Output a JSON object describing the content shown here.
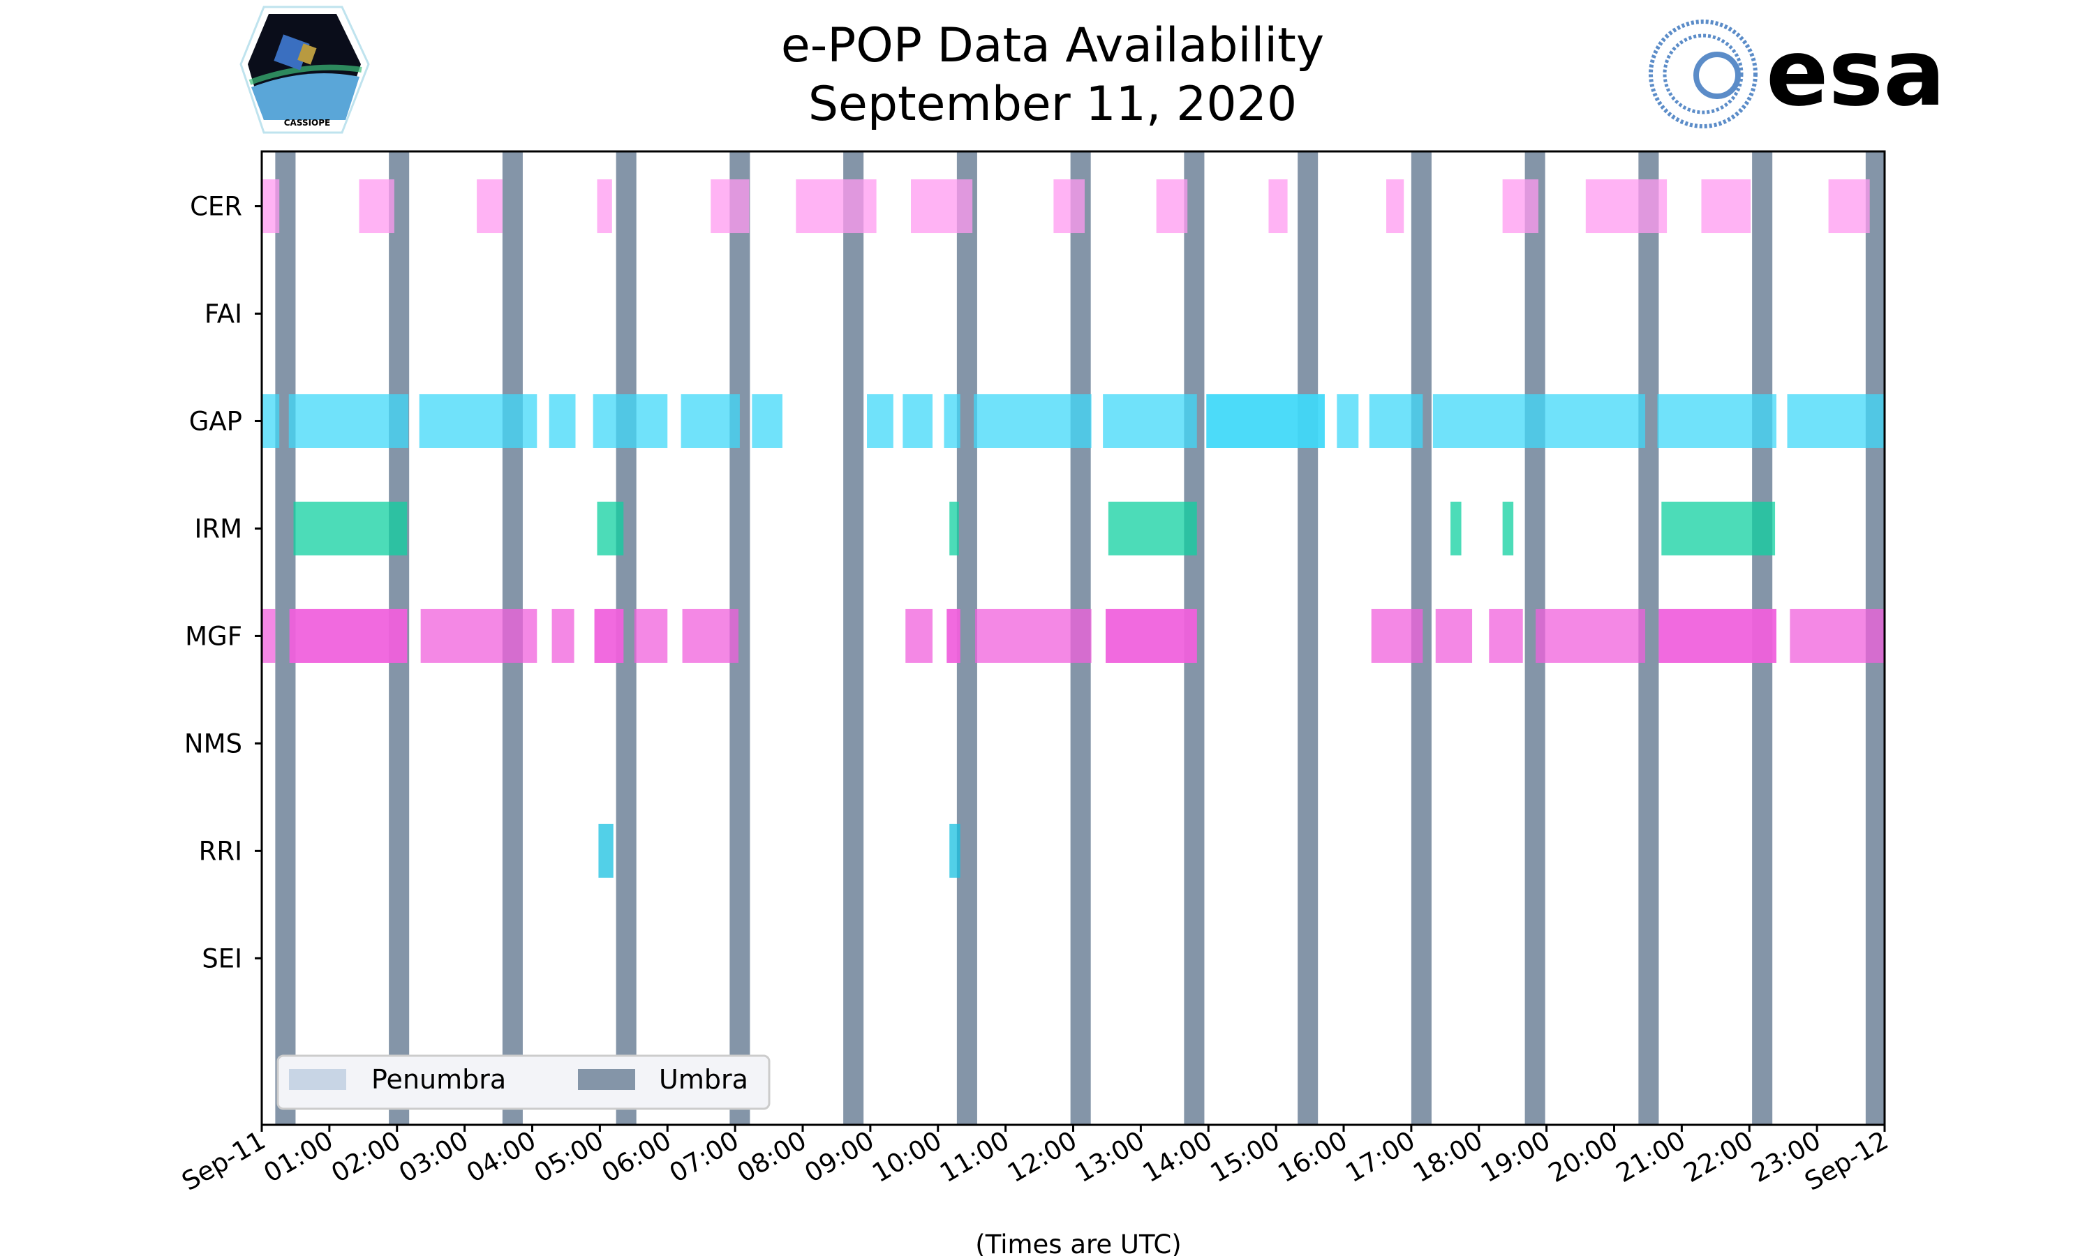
{
  "chart_data": {
    "type": "timeline",
    "title_line1": "e-POP Data Availability",
    "title_line2": "September 11, 2020",
    "xlabel": "(Times are UTC)",
    "xlim_hours": [
      0,
      24
    ],
    "x_ticks": [
      "Sep-11",
      "01:00",
      "02:00",
      "03:00",
      "04:00",
      "05:00",
      "06:00",
      "07:00",
      "08:00",
      "09:00",
      "10:00",
      "11:00",
      "12:00",
      "13:00",
      "14:00",
      "15:00",
      "16:00",
      "17:00",
      "18:00",
      "19:00",
      "20:00",
      "21:00",
      "22:00",
      "23:00",
      "Sep-12"
    ],
    "categories": [
      "CER",
      "FAI",
      "GAP",
      "IRM",
      "MGF",
      "NMS",
      "RRI",
      "SEI"
    ],
    "series": [
      {
        "name": "CER",
        "color": "#ff99f0",
        "intervals": [
          [
            0,
            0.26
          ],
          [
            1.44,
            1.96
          ],
          [
            3.18,
            3.56
          ],
          [
            4.96,
            5.18
          ],
          [
            6.64,
            7.21
          ],
          [
            7.9,
            9.09
          ],
          [
            9.6,
            10.51
          ],
          [
            11.71,
            12.17
          ],
          [
            13.23,
            13.69
          ],
          [
            14.89,
            15.17
          ],
          [
            16.63,
            16.89
          ],
          [
            18.35,
            18.88
          ],
          [
            19.58,
            20.78
          ],
          [
            21.29,
            22.02
          ],
          [
            23.17,
            23.78
          ]
        ]
      },
      {
        "name": "FAI",
        "color": "#888888",
        "intervals": []
      },
      {
        "name": "GAP",
        "color": "#40d8f8",
        "intervals": [
          [
            0,
            0.26
          ],
          [
            0.4,
            2.17
          ],
          [
            2.33,
            4.07
          ],
          [
            4.25,
            4.64
          ],
          [
            4.9,
            6.0
          ],
          [
            6.2,
            7.07
          ],
          [
            7.25,
            7.7
          ],
          [
            8.95,
            9.34
          ],
          [
            9.48,
            9.92
          ],
          [
            10.09,
            10.33
          ],
          [
            10.53,
            12.27
          ],
          [
            12.44,
            13.83
          ],
          [
            13.97,
            15.72
          ],
          [
            13.97,
            15.72
          ],
          [
            15.9,
            16.22
          ],
          [
            16.38,
            17.17
          ],
          [
            17.32,
            20.46
          ],
          [
            20.64,
            22.4
          ],
          [
            22.56,
            24.0
          ]
        ]
      },
      {
        "name": "IRM",
        "color": "#10d0a0",
        "intervals": [
          [
            0.47,
            2.15
          ],
          [
            4.96,
            5.35
          ],
          [
            10.17,
            10.31
          ],
          [
            12.52,
            13.83
          ],
          [
            17.58,
            17.74
          ],
          [
            18.35,
            18.51
          ],
          [
            20.7,
            22.38
          ]
        ]
      },
      {
        "name": "MGF",
        "color": "#f060dc",
        "intervals": [
          [
            0,
            0.2
          ],
          [
            0.41,
            2.15
          ],
          [
            0.41,
            2.15
          ],
          [
            2.35,
            4.07
          ],
          [
            4.29,
            4.62
          ],
          [
            4.92,
            5.35
          ],
          [
            4.92,
            5.35
          ],
          [
            5.51,
            6.0
          ],
          [
            6.22,
            7.05
          ],
          [
            9.52,
            9.92
          ],
          [
            10.13,
            10.33
          ],
          [
            10.13,
            10.33
          ],
          [
            10.55,
            12.27
          ],
          [
            12.48,
            13.83
          ],
          [
            12.48,
            13.83
          ],
          [
            16.41,
            17.17
          ],
          [
            17.36,
            17.9
          ],
          [
            18.15,
            18.65
          ],
          [
            18.84,
            20.46
          ],
          [
            20.66,
            22.4
          ],
          [
            20.66,
            22.4
          ],
          [
            22.6,
            24.0
          ]
        ]
      },
      {
        "name": "NMS",
        "color": "#888888",
        "intervals": []
      },
      {
        "name": "RRI",
        "color": "#18c0e0",
        "intervals": [
          [
            4.98,
            5.2
          ],
          [
            10.17,
            10.33
          ]
        ]
      },
      {
        "name": "SEI",
        "color": "#888888",
        "intervals": []
      }
    ],
    "umbra": {
      "color": "#8495a8",
      "intervals": [
        [
          0.2,
          0.5
        ],
        [
          1.88,
          2.18
        ],
        [
          3.56,
          3.86
        ],
        [
          5.24,
          5.54
        ],
        [
          6.92,
          7.22
        ],
        [
          8.6,
          8.9
        ],
        [
          10.28,
          10.58
        ],
        [
          11.96,
          12.26
        ],
        [
          13.64,
          13.94
        ],
        [
          15.32,
          15.62
        ],
        [
          17.0,
          17.3
        ],
        [
          18.68,
          18.98
        ],
        [
          20.36,
          20.66
        ],
        [
          22.04,
          22.34
        ],
        [
          23.72,
          24.0
        ]
      ]
    },
    "legend": {
      "position": "lower-left",
      "entries": [
        {
          "label": "Penumbra",
          "color": "#c8d5e5"
        },
        {
          "label": "Umbra",
          "color": "#8495a8"
        }
      ]
    }
  },
  "logos": {
    "left_text": "CASSIOPE",
    "right_text": "esa"
  }
}
